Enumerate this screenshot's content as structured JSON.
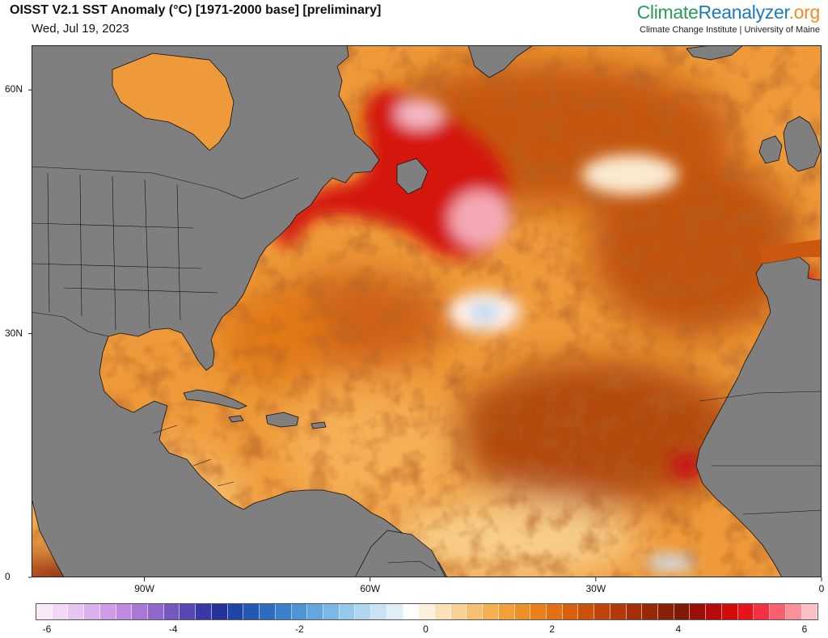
{
  "header": {
    "title": "OISST V2.1 SST Anomaly (°C) [1971-2000 base] [preliminary]",
    "date": "Wed, Jul 19, 2023",
    "brand": {
      "part1": "Climate",
      "part2": "Reanalyzer",
      "part3": ".org"
    },
    "affiliation": "Climate Change Institute | University of Maine"
  },
  "map": {
    "region": "North Atlantic",
    "lat_labels": [
      {
        "label": "60N",
        "value": 60
      },
      {
        "label": "30N",
        "value": 30
      },
      {
        "label": "0",
        "value": 0
      }
    ],
    "lon_labels": [
      {
        "label": "90W",
        "value": -90
      },
      {
        "label": "60W",
        "value": -60
      },
      {
        "label": "30W",
        "value": -30
      },
      {
        "label": "0",
        "value": 0
      }
    ],
    "colors": {
      "land": "#7f7f7f",
      "border": "#111111",
      "ocean_base": "#ee9a3a"
    }
  },
  "colorbar": {
    "ticks": [
      "-6",
      "-4",
      "-2",
      "0",
      "2",
      "4",
      "6"
    ],
    "colors": [
      "#f9e9f9",
      "#f2d8f6",
      "#e8c4f2",
      "#dcb0ee",
      "#cf9de8",
      "#bf8ae0",
      "#a978d6",
      "#9068cc",
      "#7458c0",
      "#5648b4",
      "#3838a8",
      "#26329c",
      "#1e44a8",
      "#2456b4",
      "#2e6cc0",
      "#3c80cc",
      "#4e94d6",
      "#64a6de",
      "#7cb8e6",
      "#96c8ec",
      "#b0d6f0",
      "#c8e4f4",
      "#e0eef8",
      "#ffffff",
      "#fdf0dc",
      "#fbe0b8",
      "#f9d094",
      "#f7c070",
      "#f5b050",
      "#f2a03a",
      "#ee9028",
      "#e9801c",
      "#e27014",
      "#d8600f",
      "#cc520c",
      "#bf450a",
      "#b23a09",
      "#a53008",
      "#982808",
      "#8a2008",
      "#7e1a08",
      "#9a1008",
      "#b80a0a",
      "#d40b0b",
      "#e8121a",
      "#f43044",
      "#f8606e",
      "#fa9098",
      "#fcc0c4"
    ]
  }
}
